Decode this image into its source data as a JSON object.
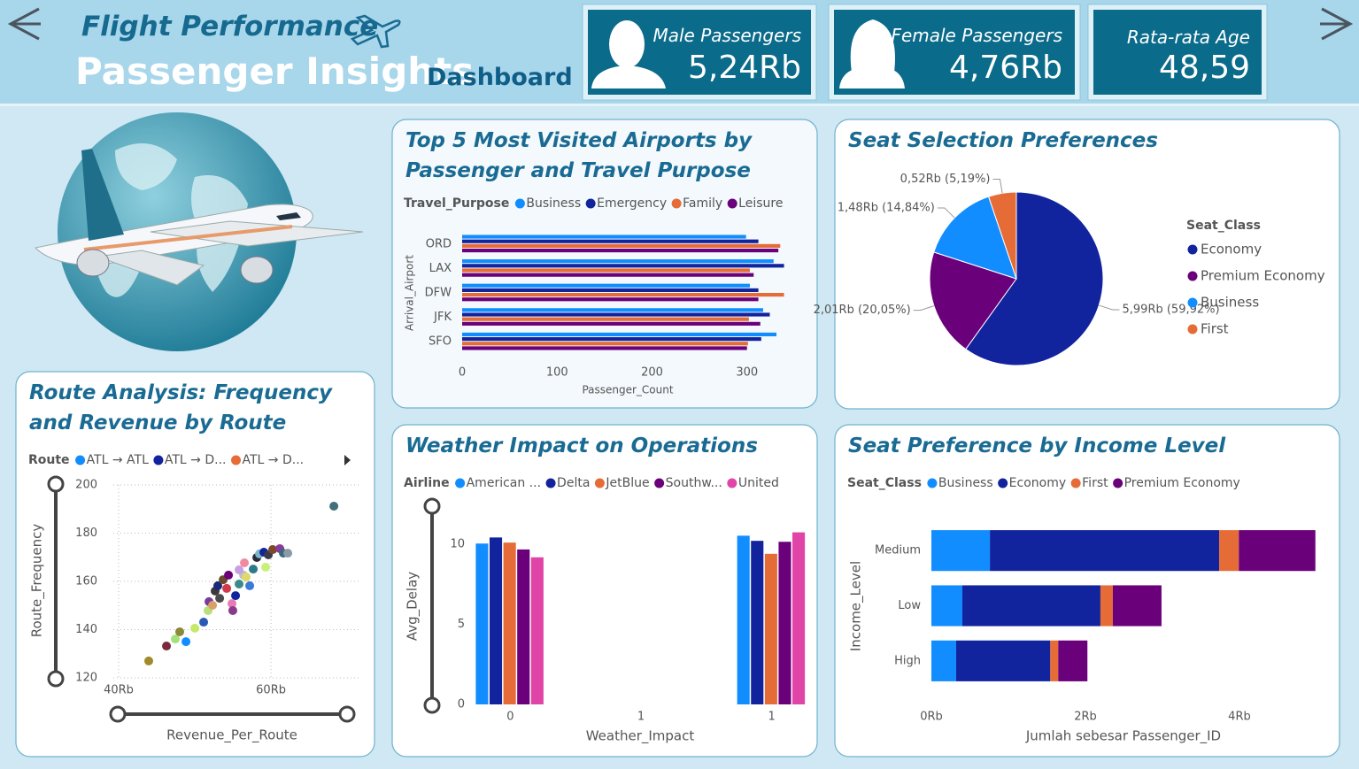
{
  "header": {
    "title": "Flight Performance",
    "subtitle": "Passenger Insights",
    "subtitle_suffix": "Dashboard"
  },
  "kpis": [
    {
      "label": "Male Passengers",
      "value": "5,24Rb"
    },
    {
      "label": "Female Passengers",
      "value": "4,76Rb"
    },
    {
      "label": "Rata-rata Age",
      "value": "48,59"
    }
  ],
  "chart_data": [
    {
      "type": "bar",
      "orientation": "horizontal",
      "title": "Top 5 Most Visited Airports by Passenger and Travel Purpose",
      "legend_title": "Travel_Purpose",
      "x_label": "Passenger_Count",
      "y_label": "Arrival_Airport",
      "categories": [
        "ORD",
        "LAX",
        "DFW",
        "JFK",
        "SFO"
      ],
      "series": [
        {
          "name": "Business",
          "color": "#118DFF",
          "values": [
            299,
            328,
            303,
            317,
            331
          ]
        },
        {
          "name": "Emergency",
          "color": "#12239E",
          "values": [
            312,
            339,
            312,
            324,
            315
          ]
        },
        {
          "name": "Family",
          "color": "#E66C37",
          "values": [
            335,
            303,
            339,
            302,
            301
          ]
        },
        {
          "name": "Leisure",
          "color": "#6B007B",
          "values": [
            333,
            307,
            312,
            314,
            300
          ]
        }
      ],
      "xlim": [
        0,
        345
      ],
      "xticks": [
        0,
        100,
        200,
        300
      ],
      "grid": false
    },
    {
      "type": "pie",
      "title": "Seat Selection Preferences",
      "legend_title": "Seat_Class",
      "categories": [
        "Economy",
        "Premium Economy",
        "Business",
        "First"
      ],
      "values": [
        5992,
        2005,
        1484,
        519
      ],
      "value_labels": [
        "5,99Rb (59,92%)",
        "2,01Rb (20,05%)",
        "1,48Rb (14,84%)",
        "0,52Rb (5,19%)"
      ],
      "colors": [
        "#12239E",
        "#6B007B",
        "#118DFF",
        "#E66C37"
      ]
    },
    {
      "type": "scatter",
      "title": "Route Analysis: Frequency and Revenue by Route",
      "legend_title": "Route",
      "legend": [
        {
          "name": "ATL → ATL",
          "color": "#118DFF"
        },
        {
          "name": "ATL → D...",
          "color": "#12239E"
        },
        {
          "name": "ATL → D...",
          "color": "#E66C37"
        }
      ],
      "x_label": "Revenue_Per_Route",
      "y_label": "Route_Frequency",
      "x": [
        68256,
        43950,
        46280,
        47440,
        48020,
        48840,
        50000,
        51160,
        51740,
        51860,
        52330,
        52670,
        53020,
        53260,
        53720,
        54190,
        54880,
        54420,
        55350,
        55810,
        56400,
        56510,
        57210,
        57670,
        58140,
        58490,
        59300,
        59070,
        59650,
        60230,
        61160,
        61630,
        62210,
        55810,
        54990,
        56740
      ],
      "y": [
        191.2,
        127.0,
        133.2,
        136.1,
        139.1,
        135.0,
        140.6,
        143.1,
        147.9,
        151.6,
        150.1,
        156.0,
        158.2,
        153.0,
        160.7,
        157.1,
        150.8,
        162.6,
        154.1,
        158.9,
        162.6,
        167.7,
        158.2,
        165.1,
        169.9,
        171.4,
        165.9,
        172.1,
        171.0,
        173.2,
        173.6,
        171.7,
        171.7,
        164.8,
        147.9,
        161.8
      ],
      "colors": [
        "#41707a",
        "#a18a2a",
        "#7a2a3a",
        "#a6e07a",
        "#8a8a3a",
        "#118DFF",
        "#c8e86a",
        "#2a5ab8",
        "#b8e07a",
        "#7a3a9a",
        "#d9a06a",
        "#3a3a3a",
        "#1a2a7a",
        "#4a4a4a",
        "#6a4a2a",
        "#d03a4a",
        "#e87ab8",
        "#6B007B",
        "#12239E",
        "#3a8a8a",
        "#b8c0c8",
        "#f08aa0",
        "#3a7ad8",
        "#2a7a8a",
        "#2a2a3a",
        "#7ab8c8",
        "#c8f07a",
        "#12239E",
        "#3a3a4a",
        "#7a4a2a",
        "#8a3a9a",
        "#3a6a7a",
        "#8a9aa8",
        "#c8a0e0",
        "#8a3a8a",
        "#e0d86a"
      ],
      "xlim": [
        39300,
        71500
      ],
      "ylim": [
        120,
        200
      ],
      "xticks": [
        {
          "value": 40000,
          "label": "40Rb"
        },
        {
          "value": 60000,
          "label": "60Rb"
        }
      ],
      "yticks": [
        120,
        140,
        160,
        180,
        200
      ],
      "grid": true
    },
    {
      "type": "bar",
      "orientation": "vertical",
      "title": "Weather Impact on Operations",
      "legend_title": "Airline",
      "x_label": "Weather_Impact",
      "y_label": "Avg_Delay",
      "x": [
        0,
        1
      ],
      "series": [
        {
          "name": "American ...",
          "color": "#118DFF",
          "values": [
            10.05,
            10.54
          ]
        },
        {
          "name": "Delta",
          "color": "#12239E",
          "values": [
            10.43,
            10.22
          ]
        },
        {
          "name": "JetBlue",
          "color": "#E66C37",
          "values": [
            10.11,
            9.41
          ]
        },
        {
          "name": "Southw...",
          "color": "#6B007B",
          "values": [
            9.68,
            10.16
          ]
        },
        {
          "name": "United",
          "color": "#E044A7",
          "values": [
            9.19,
            10.75
          ]
        }
      ],
      "xlim": [
        -0.13,
        1.13
      ],
      "xticks": [
        0,
        {
          "value": 0.5,
          "label": "1"
        },
        1
      ],
      "ylim": [
        0,
        11.5
      ],
      "yticks": [
        0,
        5,
        10
      ],
      "grid": false
    },
    {
      "type": "bar",
      "orientation": "horizontal",
      "stacked": true,
      "title": "Seat Preference by Income Level",
      "legend_title": "Seat_Class",
      "x_label": "Jumlah sebesar Passenger_ID",
      "y_label": "Income_Level",
      "categories": [
        "Medium",
        "Low",
        "High"
      ],
      "series": [
        {
          "name": "Business",
          "color": "#118DFF",
          "values": [
            760,
            402,
            322
          ]
        },
        {
          "name": "Economy",
          "color": "#12239E",
          "values": [
            2977,
            1793,
            1222
          ]
        },
        {
          "name": "First",
          "color": "#E66C37",
          "values": [
            255,
            161,
            103
          ]
        },
        {
          "name": "Premium Economy",
          "color": "#6B007B",
          "values": [
            994,
            632,
            379
          ]
        }
      ],
      "xlim": [
        0,
        5150
      ],
      "xticks": [
        {
          "value": 0,
          "label": "0Rb"
        },
        {
          "value": 2000,
          "label": "2Rb"
        },
        {
          "value": 4000,
          "label": "4Rb"
        }
      ],
      "grid": false
    }
  ]
}
